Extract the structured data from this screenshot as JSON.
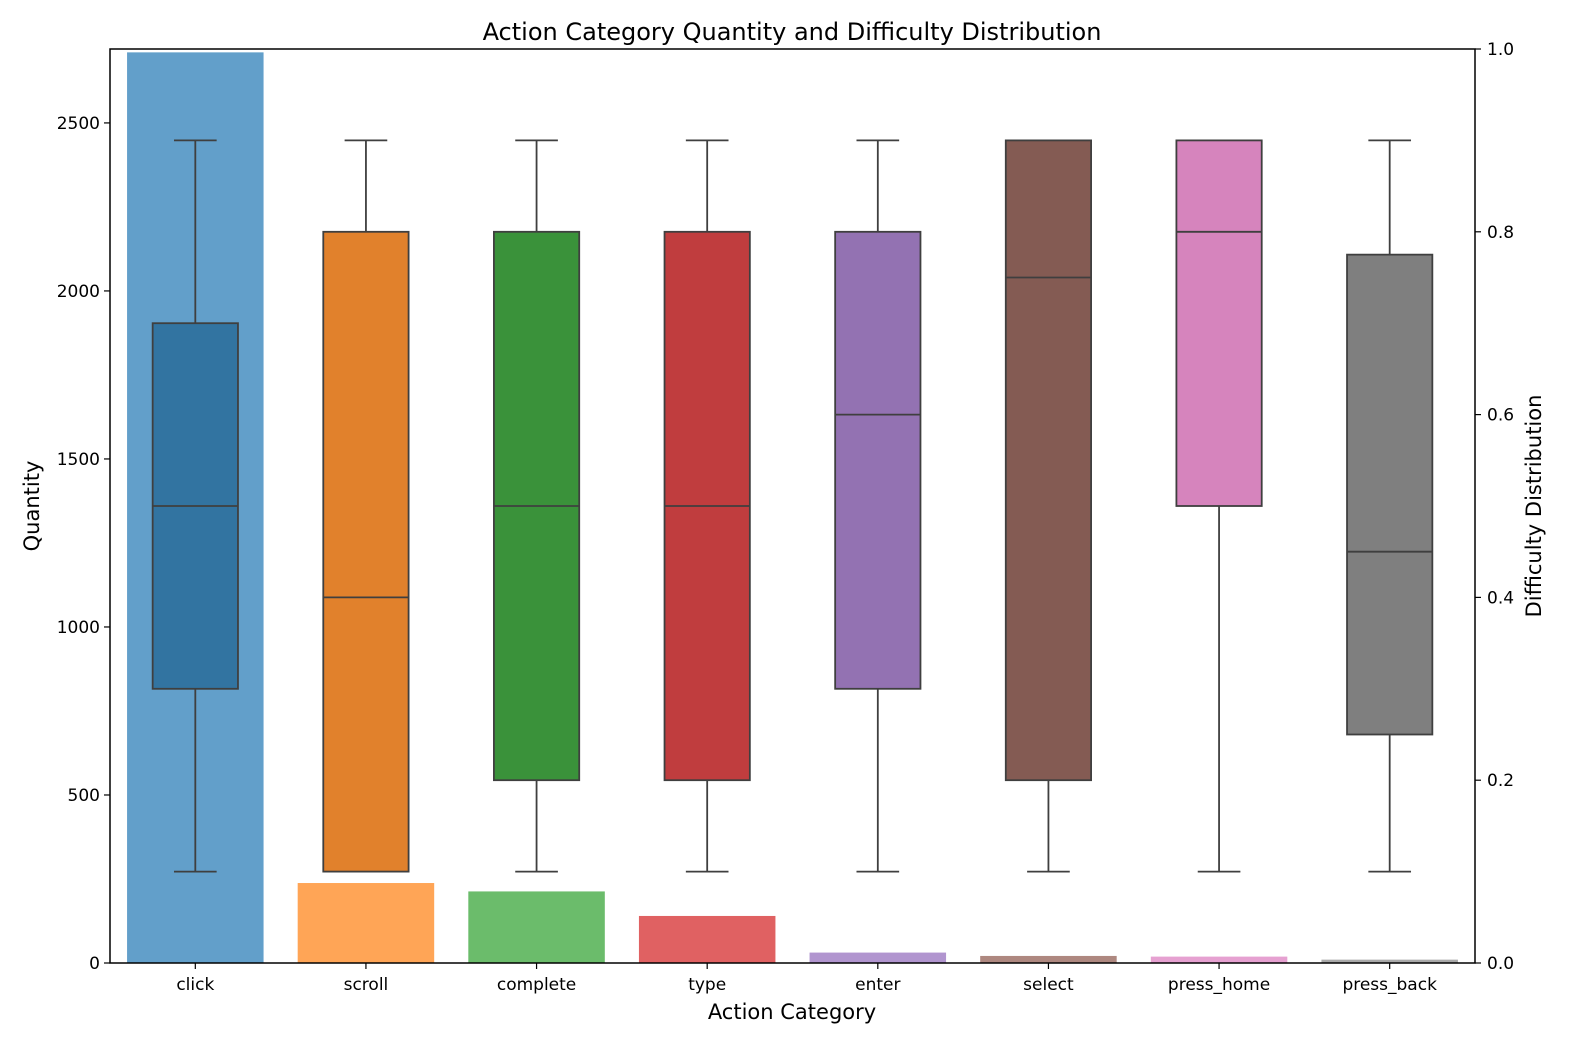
{
  "chart_data": {
    "type": "bar",
    "title": "Action Category Quantity and Difficulty Distribution",
    "xlabel": "Action Category",
    "ylabel": "Quantity",
    "y2label": "Difficulty Distribution",
    "ylim": [
      0,
      2720
    ],
    "y2lim": [
      0.0,
      1.0
    ],
    "yticks": [
      "0",
      "500",
      "1000",
      "1500",
      "2000",
      "2500"
    ],
    "y2ticks": [
      "0.0",
      "0.2",
      "0.4",
      "0.6",
      "0.8",
      "1.0"
    ],
    "grid": false,
    "categories": [
      "click",
      "scroll",
      "complete",
      "type",
      "enter",
      "select",
      "press_home",
      "press_back"
    ],
    "quantity": [
      2710,
      238,
      213,
      140,
      31,
      21,
      19,
      10
    ],
    "difficulty_boxes": [
      {
        "category": "click",
        "whisker_low": 0.1,
        "q1": 0.3,
        "median": 0.5,
        "q3": 0.7,
        "whisker_high": 0.9
      },
      {
        "category": "scroll",
        "whisker_low": 0.1,
        "q1": 0.1,
        "median": 0.4,
        "q3": 0.8,
        "whisker_high": 0.9
      },
      {
        "category": "complete",
        "whisker_low": 0.1,
        "q1": 0.2,
        "median": 0.5,
        "q3": 0.8,
        "whisker_high": 0.9
      },
      {
        "category": "type",
        "whisker_low": 0.1,
        "q1": 0.2,
        "median": 0.5,
        "q3": 0.8,
        "whisker_high": 0.9
      },
      {
        "category": "enter",
        "whisker_low": 0.1,
        "q1": 0.3,
        "median": 0.6,
        "q3": 0.8,
        "whisker_high": 0.9
      },
      {
        "category": "select",
        "whisker_low": 0.1,
        "q1": 0.2,
        "median": 0.75,
        "q3": 0.9,
        "whisker_high": 0.9
      },
      {
        "category": "press_home",
        "whisker_low": 0.1,
        "q1": 0.5,
        "median": 0.8,
        "q3": 0.9,
        "whisker_high": 0.9
      },
      {
        "category": "press_back",
        "whisker_low": 0.1,
        "q1": 0.25,
        "median": 0.45,
        "q3": 0.775,
        "whisker_high": 0.9
      }
    ],
    "bar_colors": [
      "#629fca",
      "#ffa556",
      "#6bbc6b",
      "#e06162",
      "#b195cf",
      "#ae8880",
      "#e6a1d1",
      "#a9a9a9"
    ],
    "box_colors": [
      "#3274a1",
      "#e1812c",
      "#3a923a",
      "#c03d3e",
      "#9372b2",
      "#845b53",
      "#d684bd",
      "#7f7f7f"
    ]
  }
}
